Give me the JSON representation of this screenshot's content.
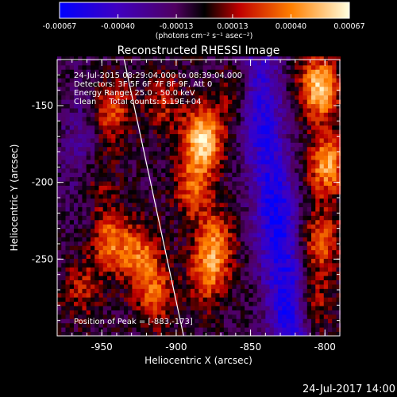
{
  "chart_data": {
    "type": "heatmap",
    "title": "Reconstructed RHESSI Image",
    "xlabel": "Heliocentric X (arcsec)",
    "ylabel": "Heliocentric Y (arcsec)",
    "xlim": [
      -980,
      -790
    ],
    "ylim": [
      -300,
      -120
    ],
    "xticks": [
      -950,
      -900,
      -850,
      -800
    ],
    "xtick_labels": [
      "-950",
      "-900",
      "-850",
      "-800"
    ],
    "yticks": [
      -150,
      -200,
      -250
    ],
    "ytick_labels": [
      "-150",
      "-200",
      "-250"
    ],
    "colorbar": {
      "min": -0.00067,
      "max": 0.00067,
      "ticks": [
        -0.00067,
        -0.0004,
        -0.00013,
        0.00013,
        0.0004,
        0.00067
      ],
      "tick_labels": [
        "-0.00067",
        "-0.00040",
        "-0.00013",
        "0.00013",
        "0.00040",
        "0.00067"
      ],
      "units_label": "(photons cm⁻² s⁻¹ asec⁻²)"
    },
    "annotations": {
      "time_range": "24-Jul-2015 08:29:04.000 to 08:39:04.000",
      "detectors": "Detectors: 3F 5F 6F 7F 8F 9F, Att 0",
      "energy_range": "Energy Range: 25.0 - 50.0 keV",
      "clean_counts": "Clean     Total counts: 5.19E+04",
      "peak_position": "Position of Peak = [-883,-173]"
    },
    "limb_line": {
      "x": [
        -935,
        -895
      ],
      "y": [
        -120,
        -300
      ]
    },
    "peak": {
      "x": -883,
      "y": -173,
      "value": 0.00067
    },
    "emission_sources": [
      {
        "x": -945,
        "y": -155,
        "amp": 0.55
      },
      {
        "x": -955,
        "y": -200,
        "amp": 0.3
      },
      {
        "x": -945,
        "y": -240,
        "amp": 0.65
      },
      {
        "x": -925,
        "y": -250,
        "amp": 0.6
      },
      {
        "x": -915,
        "y": -275,
        "amp": 0.5
      },
      {
        "x": -910,
        "y": -150,
        "amp": 0.35
      },
      {
        "x": -883,
        "y": -173,
        "amp": 1.0
      },
      {
        "x": -890,
        "y": -205,
        "amp": 0.55
      },
      {
        "x": -875,
        "y": -240,
        "amp": 0.6
      },
      {
        "x": -880,
        "y": -262,
        "amp": 0.55
      },
      {
        "x": -860,
        "y": -145,
        "amp": 0.3
      },
      {
        "x": -805,
        "y": -140,
        "amp": 0.95
      },
      {
        "x": -800,
        "y": -190,
        "amp": 0.8
      },
      {
        "x": -805,
        "y": -240,
        "amp": 0.6
      },
      {
        "x": -810,
        "y": -280,
        "amp": 0.45
      },
      {
        "x": -965,
        "y": -270,
        "amp": 0.35
      }
    ],
    "negative_sources": [
      {
        "x": -845,
        "y": -150,
        "amp": 0.7
      },
      {
        "x": -835,
        "y": -220,
        "amp": 0.75
      },
      {
        "x": -825,
        "y": -285,
        "amp": 0.8
      },
      {
        "x": -965,
        "y": -180,
        "amp": 0.3
      }
    ]
  },
  "footer": {
    "timestamp": "24-Jul-2017 14:00"
  }
}
